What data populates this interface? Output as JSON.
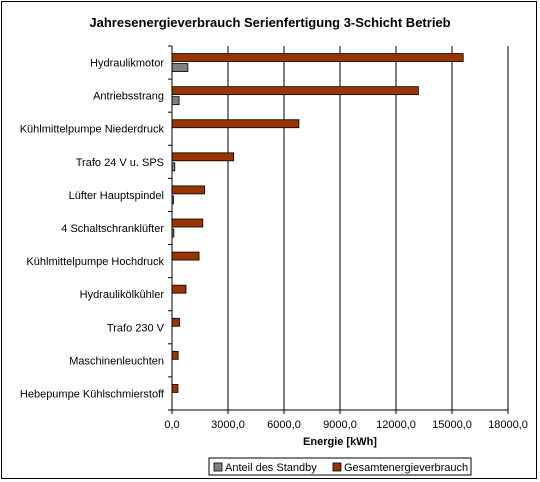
{
  "chart_data": {
    "type": "bar",
    "orientation": "horizontal",
    "title": "Jahresenergieverbrauch Serienfertigung 3-Schicht Betrieb",
    "xlabel": "Energie [kWh]",
    "ylabel": "",
    "xlim": [
      0,
      18000
    ],
    "xticks": [
      0,
      3000,
      6000,
      9000,
      12000,
      15000,
      18000
    ],
    "xtick_labels": [
      "0,0",
      "3000,0",
      "6000,0",
      "9000,0",
      "12000,0",
      "15000,0",
      "18000,0"
    ],
    "grid": "vertical major gridlines",
    "legend_position": "bottom",
    "categories": [
      "Hydraulikmotor",
      "Antriebsstrang",
      "Kühlmittelpumpe Niederdruck",
      "Trafo 24 V u. SPS",
      "Lüfter Hauptspindel",
      "4 Schaltschranklüfter",
      "Kühlmittelpumpe Hochdruck",
      "Hydraulikölkühler",
      "Trafo 230 V",
      "Maschinenleuchten",
      "Hebepumpe Kühlschmierstoff"
    ],
    "series": [
      {
        "name": "Gesamtenergieverbrauch",
        "color": "#993300",
        "values": [
          15600,
          13200,
          6800,
          3300,
          1750,
          1650,
          1450,
          750,
          400,
          330,
          320
        ]
      },
      {
        "name": "Anteil des Standby",
        "color": "#808080",
        "values": [
          850,
          380,
          0,
          150,
          80,
          100,
          0,
          0,
          0,
          0,
          0
        ]
      }
    ]
  }
}
